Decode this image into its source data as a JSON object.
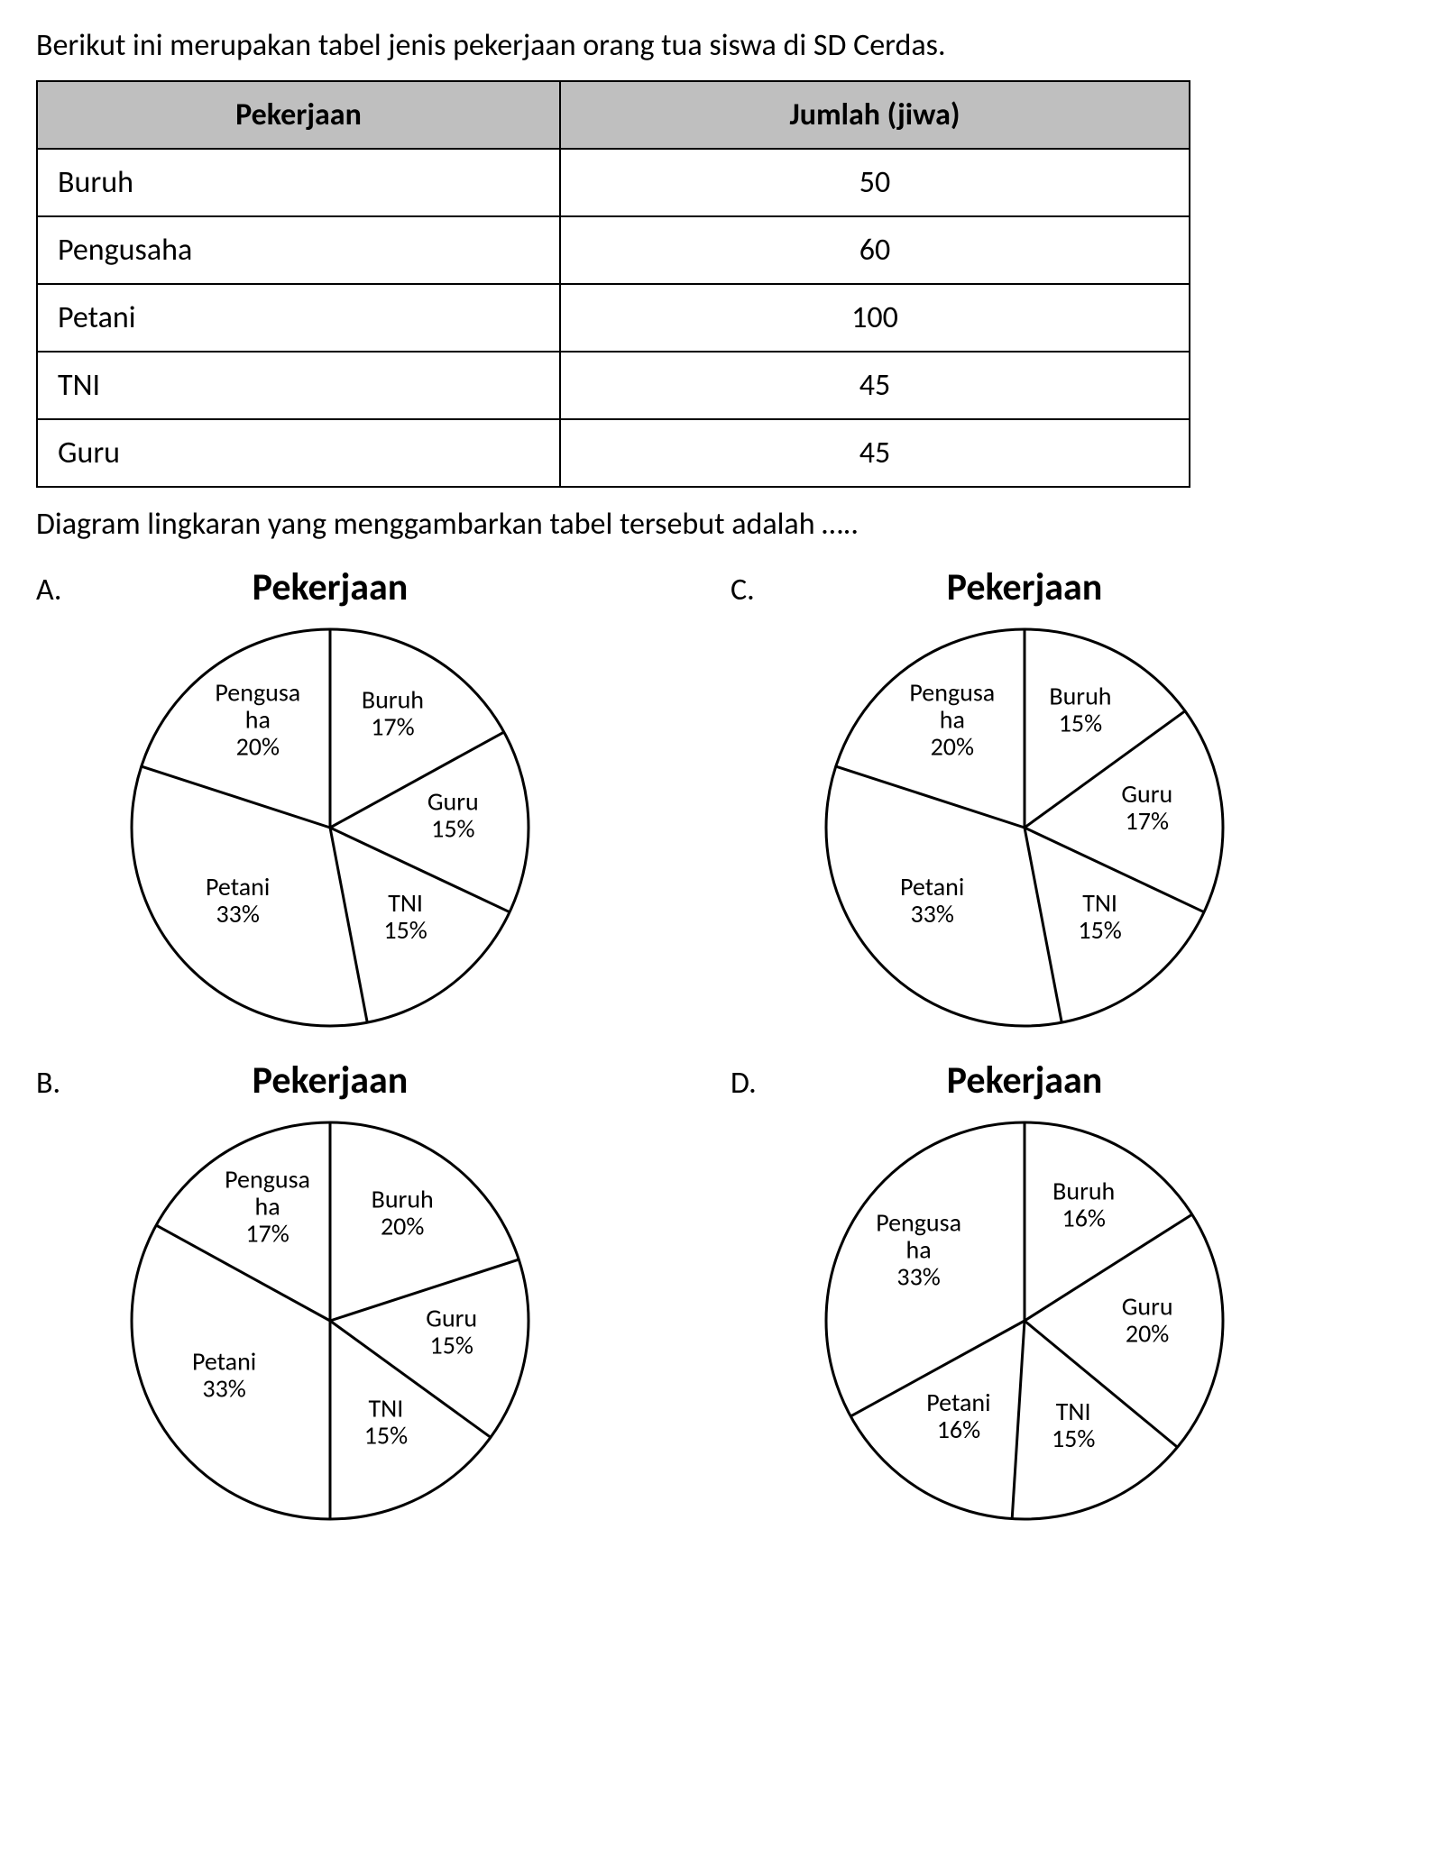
{
  "intro": "Berikut ini merupakan tabel jenis pekerjaan orang tua siswa di SD Cerdas.",
  "table": {
    "header_job": "Pekerjaan",
    "header_count": "Jumlah (jiwa)",
    "rows": [
      {
        "job": "Buruh",
        "count": "50"
      },
      {
        "job": "Pengusaha",
        "count": "60"
      },
      {
        "job": "Petani",
        "count": "100"
      },
      {
        "job": "TNI",
        "count": "45"
      },
      {
        "job": "Guru",
        "count": "45"
      }
    ],
    "header_bg": "#bfbfbf",
    "border_color": "#000000",
    "font_size_pt": 26
  },
  "question": "Diagram lingkaran yang menggambarkan tabel tersebut adalah …..",
  "chart_style": {
    "type": "pie",
    "radius": 220,
    "stroke_color": "#000000",
    "stroke_width": 3,
    "fill_color": "#ffffff",
    "slice_label_fontsize": 28,
    "title_fontsize": 42,
    "label_color": "#000000"
  },
  "options": {
    "A": {
      "letter": "A.",
      "title": "Pekerjaan",
      "slices": [
        {
          "label": "Buruh",
          "percent": 17
        },
        {
          "label": "Guru",
          "percent": 15
        },
        {
          "label": "TNI",
          "percent": 15
        },
        {
          "label": "Petani",
          "percent": 33
        },
        {
          "label": "Pengusaha",
          "percent": 20,
          "wrap": [
            "Pengusa",
            "ha"
          ]
        }
      ]
    },
    "B": {
      "letter": "B.",
      "title": "Pekerjaan",
      "slices": [
        {
          "label": "Buruh",
          "percent": 20
        },
        {
          "label": "Guru",
          "percent": 15
        },
        {
          "label": "TNI",
          "percent": 15
        },
        {
          "label": "Petani",
          "percent": 33
        },
        {
          "label": "Pengusaha",
          "percent": 17,
          "wrap": [
            "Pengusa",
            "ha"
          ]
        }
      ]
    },
    "C": {
      "letter": "C.",
      "title": "Pekerjaan",
      "slices": [
        {
          "label": "Buruh",
          "percent": 15
        },
        {
          "label": "Guru",
          "percent": 17
        },
        {
          "label": "TNI",
          "percent": 15
        },
        {
          "label": "Petani",
          "percent": 33
        },
        {
          "label": "Pengusaha",
          "percent": 20,
          "wrap": [
            "Pengusa",
            "ha"
          ]
        }
      ]
    },
    "D": {
      "letter": "D.",
      "title": "Pekerjaan",
      "slices": [
        {
          "label": "Buruh",
          "percent": 16
        },
        {
          "label": "Guru",
          "percent": 20
        },
        {
          "label": "TNI",
          "percent": 15
        },
        {
          "label": "Petani",
          "percent": 16
        },
        {
          "label": "Pengusaha",
          "percent": 33,
          "wrap": [
            "Pengusa",
            "ha"
          ]
        }
      ]
    }
  }
}
